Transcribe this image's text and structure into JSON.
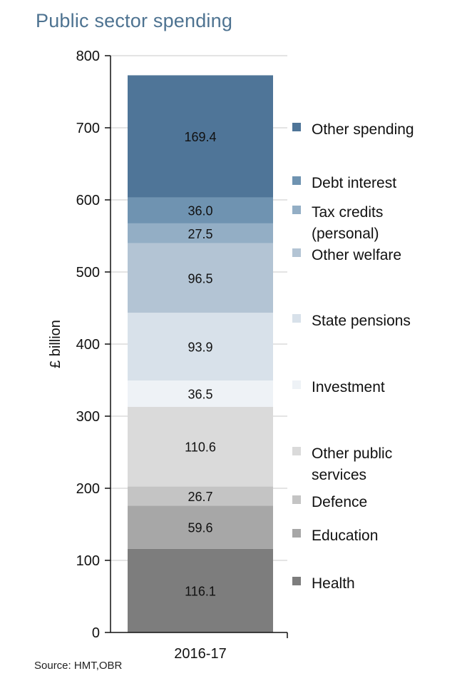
{
  "title": "Public sector spending",
  "source": "Source: HMT,OBR",
  "chart_data": {
    "type": "bar",
    "stacked": true,
    "title": "Public sector spending",
    "ylabel": "£ billion",
    "ylim": [
      0,
      800
    ],
    "yticks": [
      0,
      100,
      200,
      300,
      400,
      500,
      600,
      700,
      800
    ],
    "categories": [
      "2016-17"
    ],
    "grid": true,
    "legend_position": "right",
    "series": [
      {
        "name": "Health",
        "values": [
          116.1
        ],
        "label": "116.1",
        "color": "#7d7d7d"
      },
      {
        "name": "Education",
        "values": [
          59.6
        ],
        "label": "59.6",
        "color": "#a7a7a7"
      },
      {
        "name": "Defence",
        "values": [
          26.7
        ],
        "label": "26.7",
        "color": "#c4c4c4"
      },
      {
        "name": "Other public services",
        "legend_lines": [
          "Other public",
          "services"
        ],
        "values": [
          110.6
        ],
        "label": "110.6",
        "color": "#dadada"
      },
      {
        "name": "Investment",
        "values": [
          36.5
        ],
        "label": "36.5",
        "color": "#eef2f6"
      },
      {
        "name": "State pensions",
        "values": [
          93.9
        ],
        "label": "93.9",
        "color": "#d8e1ea"
      },
      {
        "name": "Other welfare",
        "values": [
          96.5
        ],
        "label": "96.5",
        "color": "#b3c4d4"
      },
      {
        "name": "Tax credits (personal)",
        "legend_lines": [
          "Tax credits",
          "(personal)"
        ],
        "values": [
          27.5
        ],
        "label": "27.5",
        "color": "#93aec5"
      },
      {
        "name": "Debt interest",
        "values": [
          36.0
        ],
        "label": "36.0",
        "color": "#6f93b1"
      },
      {
        "name": "Other spending",
        "values": [
          169.4
        ],
        "label": "169.4",
        "color": "#4f7598"
      }
    ]
  }
}
